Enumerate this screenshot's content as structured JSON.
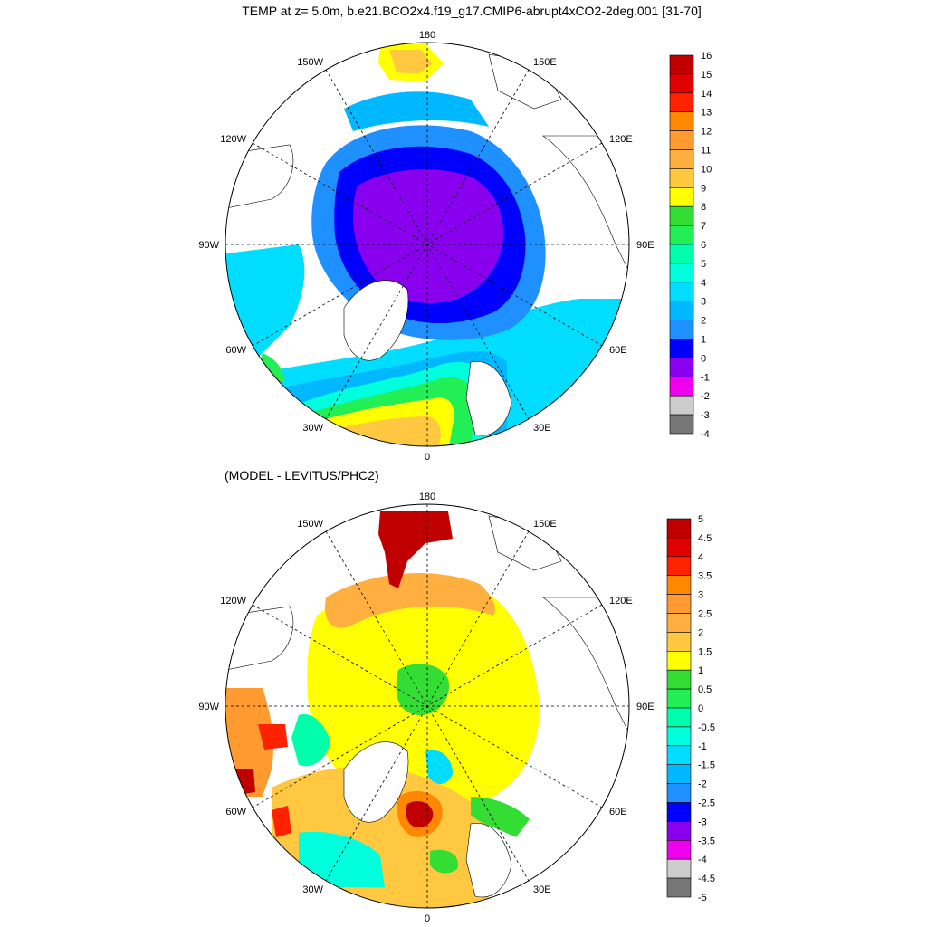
{
  "figure": {
    "title": "TEMP at z=   5.0m, b.e21.BCO2x4.f19_g17.CMIP6-abrupt4xCO2-2deg.001 [31-70]",
    "subtitle": "(MODEL - LEVITUS/PHC2)"
  },
  "longitude_labels": {
    "top": "180",
    "bottom": "0",
    "left": "90W",
    "right": "90E",
    "upper_left_1": "150W",
    "upper_left_2": "120W",
    "upper_right_1": "150E",
    "upper_right_2": "120E",
    "lower_left_1": "60W",
    "lower_left_2": "30W",
    "lower_right_1": "60E",
    "lower_right_2": "30E"
  },
  "colorbars": {
    "temp": {
      "labels": [
        "16",
        "15",
        "14",
        "13",
        "12",
        "11",
        "10",
        "9",
        "8",
        "7",
        "6",
        "5",
        "4",
        "3",
        "2",
        "1",
        "0",
        "-1",
        "-2",
        "-3",
        "-4"
      ],
      "colors": [
        "#c00000",
        "#e00000",
        "#ff2200",
        "#ff8800",
        "#ff9a30",
        "#ffae40",
        "#ffc840",
        "#ffff00",
        "#33dd33",
        "#22ee55",
        "#00ffaa",
        "#00ffdd",
        "#00ddff",
        "#00b8ff",
        "#1e90ff",
        "#0000ff",
        "#8800ee",
        "#ee00ee",
        "#cccccc",
        "#777777"
      ]
    },
    "diff": {
      "labels": [
        "5",
        "4.5",
        "4",
        "3.5",
        "3",
        "2.5",
        "2",
        "1.5",
        "1",
        "0.5",
        "0",
        "-0.5",
        "-1",
        "-1.5",
        "-2",
        "-2.5",
        "-3",
        "-3.5",
        "-4",
        "-4.5",
        "-5"
      ],
      "colors": [
        "#c00000",
        "#e00000",
        "#ff2200",
        "#ff8800",
        "#ff9a30",
        "#ffae40",
        "#ffc840",
        "#ffff00",
        "#33dd33",
        "#22ee55",
        "#00ffaa",
        "#00ffdd",
        "#00ddff",
        "#00b8ff",
        "#1e90ff",
        "#0000ff",
        "#8800ee",
        "#ee00ee",
        "#cccccc",
        "#777777"
      ]
    }
  }
}
